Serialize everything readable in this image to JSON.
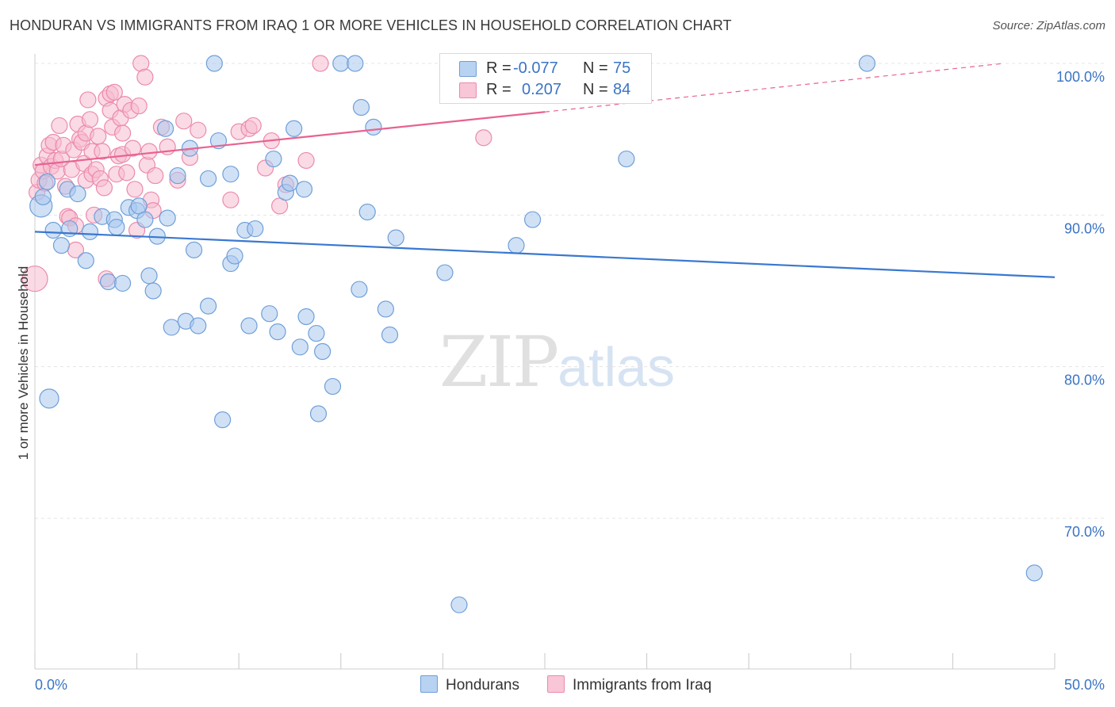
{
  "header": {
    "title": "HONDURAN VS IMMIGRANTS FROM IRAQ 1 OR MORE VEHICLES IN HOUSEHOLD CORRELATION CHART",
    "source": "Source: ZipAtlas.com"
  },
  "watermark": {
    "zip": "ZIP",
    "atlas": "atlas"
  },
  "legend": {
    "rows": [
      {
        "r_label": "R =",
        "r_value": "-0.077",
        "n_label": "N =",
        "n_value": "75"
      },
      {
        "r_label": "R =",
        "r_value": "0.207",
        "n_label": "N =",
        "n_value": "84"
      }
    ]
  },
  "bottom_legend": {
    "series1": "Hondurans",
    "series2": "Immigrants from Iraq"
  },
  "colors": {
    "blue_fill": "#a9c8ee",
    "blue_stroke": "#6f9fd8",
    "blue_line": "#3a78d0",
    "pink_fill": "#f6bcd0",
    "pink_stroke": "#ec8aab",
    "pink_line": "#e8628f",
    "tick_text": "#3a74c4",
    "grid": "#e4e4e4"
  },
  "chart_data": {
    "type": "scatter",
    "title": "HONDURAN VS IMMIGRANTS FROM IRAQ 1 OR MORE VEHICLES IN HOUSEHOLD CORRELATION CHART",
    "xlabel": "",
    "ylabel": "1 or more Vehicles in Household",
    "xlim": [
      0,
      50
    ],
    "ylim": [
      60.5,
      101.5
    ],
    "x_tick_labels": [
      "0.0%",
      "50.0%"
    ],
    "y_ticks": [
      70,
      80,
      90,
      100
    ],
    "y_tick_labels": [
      "70.0%",
      "80.0%",
      "90.0%",
      "100.0%"
    ],
    "grid": true,
    "legend_position": "top-center",
    "series": [
      {
        "name": "Hondurans",
        "r": -0.077,
        "n": 75,
        "trend": {
          "x": [
            0,
            50
          ],
          "y": [
            88.9,
            85.9
          ],
          "dashed_from": null
        },
        "points": [
          [
            0.3,
            90.6,
            14
          ],
          [
            0.4,
            91.2,
            10
          ],
          [
            0.6,
            92.2,
            10
          ],
          [
            0.9,
            89.0,
            10
          ],
          [
            1.3,
            88.0,
            10
          ],
          [
            1.6,
            91.7,
            10
          ],
          [
            1.7,
            89.1,
            10
          ],
          [
            2.1,
            91.4,
            10
          ],
          [
            2.5,
            87.0,
            10
          ],
          [
            2.7,
            88.9,
            10
          ],
          [
            3.3,
            89.9,
            10
          ],
          [
            3.6,
            85.6,
            10
          ],
          [
            3.9,
            89.7,
            10
          ],
          [
            4.0,
            89.2,
            10
          ],
          [
            4.3,
            85.5,
            10
          ],
          [
            4.6,
            90.5,
            10
          ],
          [
            5.0,
            90.3,
            10
          ],
          [
            5.1,
            90.6,
            10
          ],
          [
            5.4,
            89.7,
            10
          ],
          [
            5.6,
            86.0,
            10
          ],
          [
            5.8,
            85.0,
            10
          ],
          [
            6.0,
            88.6,
            10
          ],
          [
            6.4,
            95.7,
            10
          ],
          [
            6.5,
            89.8,
            10
          ],
          [
            6.7,
            82.6,
            10
          ],
          [
            7.0,
            92.6,
            10
          ],
          [
            7.4,
            83.0,
            10
          ],
          [
            7.6,
            94.4,
            10
          ],
          [
            7.8,
            87.7,
            10
          ],
          [
            8.0,
            82.7,
            10
          ],
          [
            8.5,
            92.4,
            10
          ],
          [
            8.5,
            84.0,
            10
          ],
          [
            8.8,
            100.0,
            10
          ],
          [
            9.0,
            94.9,
            10
          ],
          [
            9.2,
            76.5,
            10
          ],
          [
            9.6,
            92.7,
            10
          ],
          [
            9.6,
            86.8,
            10
          ],
          [
            9.8,
            87.3,
            10
          ],
          [
            10.3,
            89.0,
            10
          ],
          [
            10.5,
            82.7,
            10
          ],
          [
            10.8,
            89.1,
            10
          ],
          [
            11.5,
            83.5,
            10
          ],
          [
            11.7,
            93.7,
            10
          ],
          [
            11.9,
            82.3,
            10
          ],
          [
            12.3,
            91.5,
            10
          ],
          [
            12.5,
            92.1,
            10
          ],
          [
            12.7,
            95.7,
            10
          ],
          [
            13.0,
            81.3,
            10
          ],
          [
            13.2,
            91.7,
            10
          ],
          [
            13.3,
            83.3,
            10
          ],
          [
            13.8,
            82.2,
            10
          ],
          [
            13.9,
            76.9,
            10
          ],
          [
            14.1,
            81.0,
            10
          ],
          [
            14.6,
            78.7,
            10
          ],
          [
            15.0,
            100.0,
            10
          ],
          [
            15.7,
            100.0,
            10
          ],
          [
            15.9,
            85.1,
            10
          ],
          [
            16.0,
            97.1,
            10
          ],
          [
            16.3,
            90.2,
            10
          ],
          [
            16.6,
            95.8,
            10
          ],
          [
            17.2,
            83.8,
            10
          ],
          [
            17.4,
            82.1,
            10
          ],
          [
            17.7,
            88.5,
            10
          ],
          [
            20.1,
            86.2,
            10
          ],
          [
            20.8,
            64.3,
            10
          ],
          [
            23.6,
            88.0,
            10
          ],
          [
            24.4,
            89.7,
            10
          ],
          [
            27.9,
            100.0,
            10
          ],
          [
            29.0,
            93.7,
            10
          ],
          [
            40.8,
            100.0,
            10
          ],
          [
            49.0,
            66.4,
            10
          ],
          [
            0.7,
            77.9,
            12
          ],
          [
            2.8,
            82.3,
            0
          ],
          [
            30.1,
            90.0,
            0
          ],
          [
            35.0,
            88.0,
            0
          ]
        ]
      },
      {
        "name": "Immigrants from Iraq",
        "r": 0.207,
        "n": 84,
        "trend": {
          "x": [
            0,
            25,
            47.5
          ],
          "y": [
            93.3,
            96.8,
            100.0
          ],
          "dashed_from": 25
        },
        "points": [
          [
            0.0,
            85.8,
            16
          ],
          [
            0.1,
            91.5,
            10
          ],
          [
            0.2,
            92.3,
            10
          ],
          [
            0.3,
            93.3,
            10
          ],
          [
            0.4,
            92.9,
            10
          ],
          [
            0.5,
            92.1,
            10
          ],
          [
            0.6,
            93.9,
            10
          ],
          [
            0.7,
            94.6,
            10
          ],
          [
            0.8,
            93.2,
            10
          ],
          [
            0.9,
            94.8,
            10
          ],
          [
            1.0,
            93.6,
            10
          ],
          [
            1.1,
            92.9,
            10
          ],
          [
            1.2,
            95.9,
            10
          ],
          [
            1.3,
            93.7,
            10
          ],
          [
            1.4,
            94.6,
            10
          ],
          [
            1.5,
            91.9,
            10
          ],
          [
            1.6,
            89.9,
            10
          ],
          [
            1.7,
            89.8,
            10
          ],
          [
            1.8,
            93.0,
            10
          ],
          [
            1.9,
            94.3,
            10
          ],
          [
            2.0,
            89.3,
            10
          ],
          [
            2.0,
            87.7,
            10
          ],
          [
            2.1,
            96.0,
            10
          ],
          [
            2.2,
            95.0,
            10
          ],
          [
            2.3,
            94.8,
            10
          ],
          [
            2.4,
            93.4,
            10
          ],
          [
            2.5,
            92.3,
            10
          ],
          [
            2.5,
            95.4,
            10
          ],
          [
            2.6,
            97.6,
            10
          ],
          [
            2.7,
            96.3,
            10
          ],
          [
            2.8,
            94.2,
            10
          ],
          [
            2.8,
            92.7,
            10
          ],
          [
            2.9,
            90.0,
            10
          ],
          [
            3.0,
            93.0,
            10
          ],
          [
            3.1,
            95.2,
            10
          ],
          [
            3.2,
            92.4,
            10
          ],
          [
            3.3,
            94.2,
            10
          ],
          [
            3.4,
            91.8,
            10
          ],
          [
            3.5,
            97.7,
            10
          ],
          [
            3.5,
            85.8,
            10
          ],
          [
            3.7,
            96.9,
            10
          ],
          [
            3.7,
            98.0,
            10
          ],
          [
            3.8,
            95.8,
            10
          ],
          [
            3.9,
            98.1,
            10
          ],
          [
            4.0,
            92.7,
            10
          ],
          [
            4.1,
            93.9,
            10
          ],
          [
            4.2,
            96.4,
            10
          ],
          [
            4.3,
            94.0,
            10
          ],
          [
            4.3,
            95.4,
            10
          ],
          [
            4.4,
            97.3,
            10
          ],
          [
            4.5,
            92.8,
            10
          ],
          [
            4.7,
            96.9,
            10
          ],
          [
            4.8,
            94.4,
            10
          ],
          [
            4.9,
            91.7,
            10
          ],
          [
            5.0,
            89.0,
            10
          ],
          [
            5.1,
            97.2,
            10
          ],
          [
            5.2,
            100.0,
            10
          ],
          [
            5.4,
            99.1,
            10
          ],
          [
            5.5,
            93.3,
            10
          ],
          [
            5.6,
            94.2,
            10
          ],
          [
            5.7,
            91.0,
            10
          ],
          [
            5.8,
            90.3,
            10
          ],
          [
            5.9,
            92.6,
            10
          ],
          [
            6.2,
            95.8,
            10
          ],
          [
            6.5,
            94.5,
            10
          ],
          [
            7.0,
            92.3,
            10
          ],
          [
            7.3,
            96.2,
            10
          ],
          [
            7.6,
            93.8,
            10
          ],
          [
            8.0,
            95.6,
            10
          ],
          [
            9.6,
            91.0,
            10
          ],
          [
            10.0,
            95.5,
            10
          ],
          [
            10.5,
            95.7,
            10
          ],
          [
            10.7,
            95.9,
            10
          ],
          [
            11.3,
            93.1,
            10
          ],
          [
            11.6,
            94.9,
            10
          ],
          [
            12.0,
            90.6,
            10
          ],
          [
            12.3,
            92.0,
            10
          ],
          [
            13.3,
            93.6,
            10
          ],
          [
            14.0,
            100.0,
            10
          ],
          [
            22.0,
            95.1,
            10
          ],
          [
            0.9,
            89.9,
            0
          ],
          [
            1.4,
            88.5,
            0
          ],
          [
            4.6,
            85.0,
            0
          ],
          [
            6.0,
            90.0,
            0
          ]
        ]
      }
    ]
  }
}
